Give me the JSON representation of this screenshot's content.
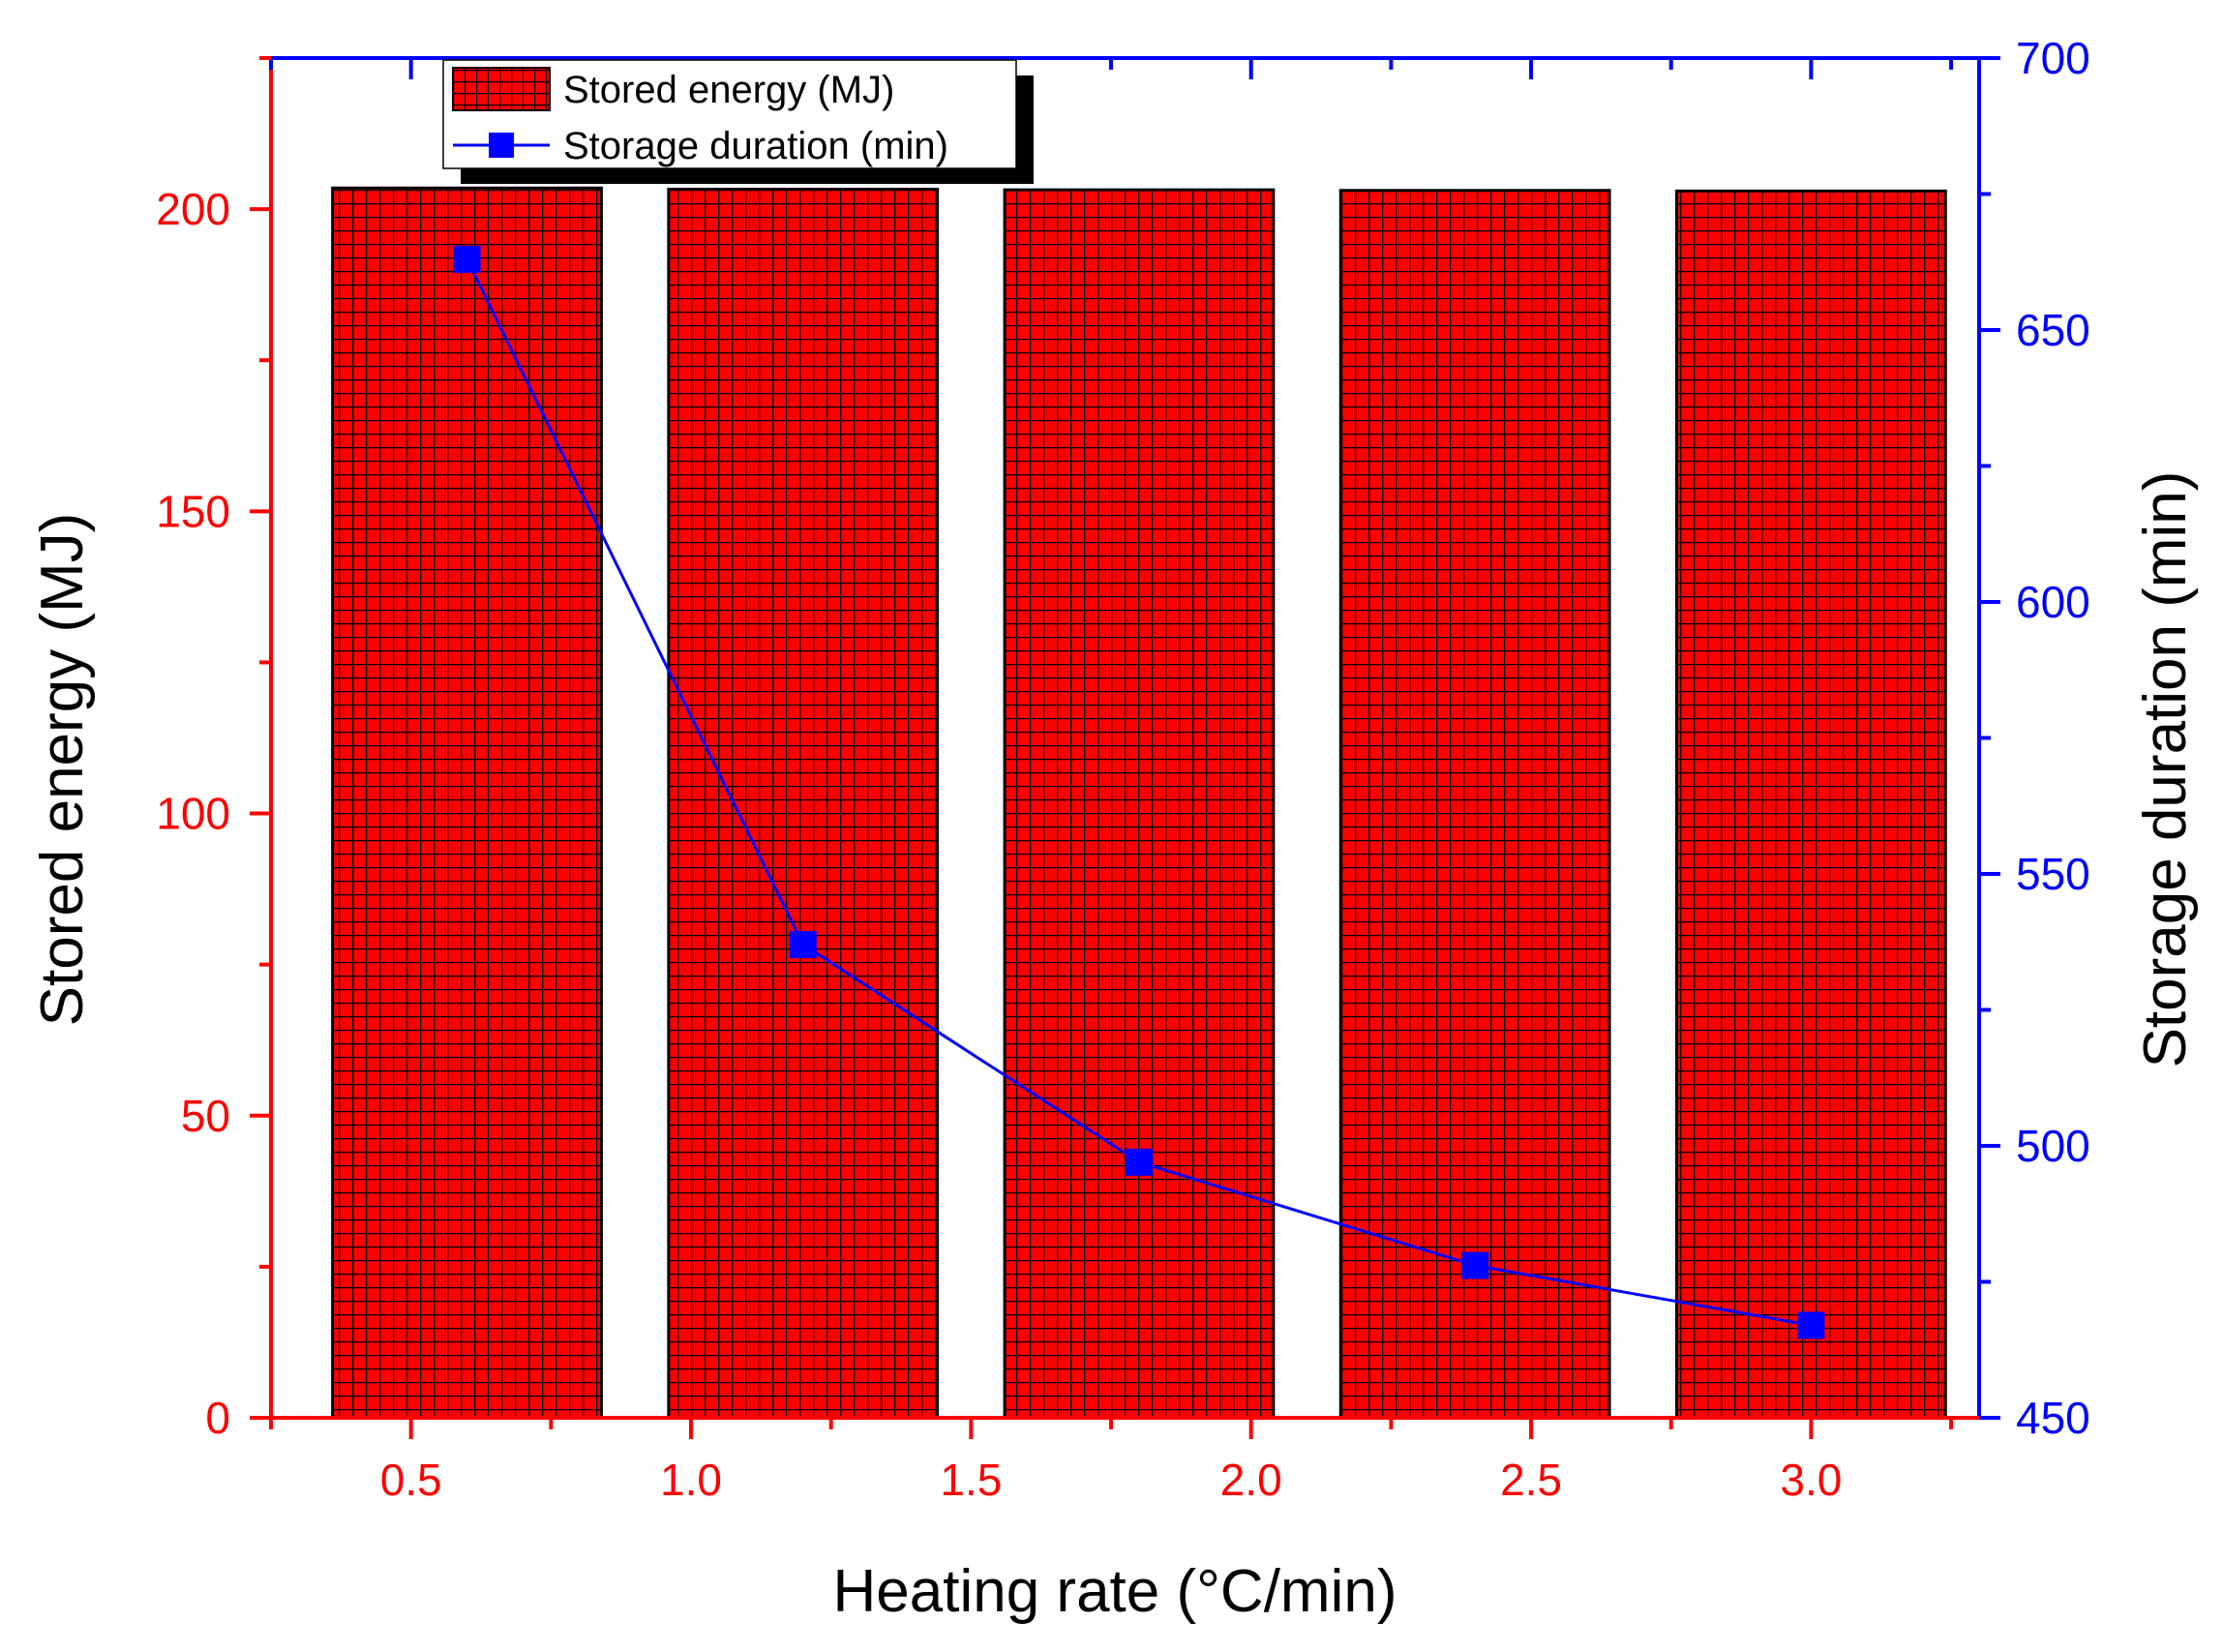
{
  "chart_data": {
    "type": "bar",
    "title": "",
    "xlabel": "Heating rate (°C/min)",
    "ylabel": "Stored energy (MJ)",
    "y2label": "Storage duration (min)",
    "x_values": [
      0.6,
      1.2,
      1.8,
      2.4,
      3.0
    ],
    "xlim": [
      0.25,
      3.3
    ],
    "ylim": [
      0,
      225
    ],
    "y2lim": [
      450,
      700
    ],
    "x_ticks": [
      0.5,
      1.0,
      1.5,
      2.0,
      2.5,
      3.0
    ],
    "x_tick_labels": [
      "0.5",
      "1.0",
      "1.5",
      "2.0",
      "2.5",
      "3.0"
    ],
    "y_ticks": [
      0,
      50,
      100,
      150,
      200
    ],
    "y_tick_labels": [
      "0",
      "50",
      "100",
      "150",
      "200"
    ],
    "y2_ticks": [
      450,
      500,
      550,
      600,
      650,
      700
    ],
    "y2_tick_labels": [
      "450",
      "500",
      "550",
      "600",
      "650",
      "700"
    ],
    "grid": false,
    "legend_position": "top-left",
    "series": [
      {
        "name": "Stored energy (MJ)",
        "kind": "bar",
        "axis": "left",
        "color": "#ff0000",
        "pattern": "grid-hatch",
        "values": [
          203.5,
          203.3,
          203.2,
          203.1,
          203.0
        ]
      },
      {
        "name": "Storage duration (min)",
        "kind": "line",
        "axis": "right",
        "color": "#0000ff",
        "marker": "square",
        "values": [
          663,
          537,
          497,
          478,
          467
        ]
      }
    ],
    "colors": {
      "left_axis": "#ff0000",
      "right_axis": "#0000ff",
      "bar_fill": "#ff0000",
      "bar_edge": "#000000",
      "line": "#0000ff"
    }
  }
}
